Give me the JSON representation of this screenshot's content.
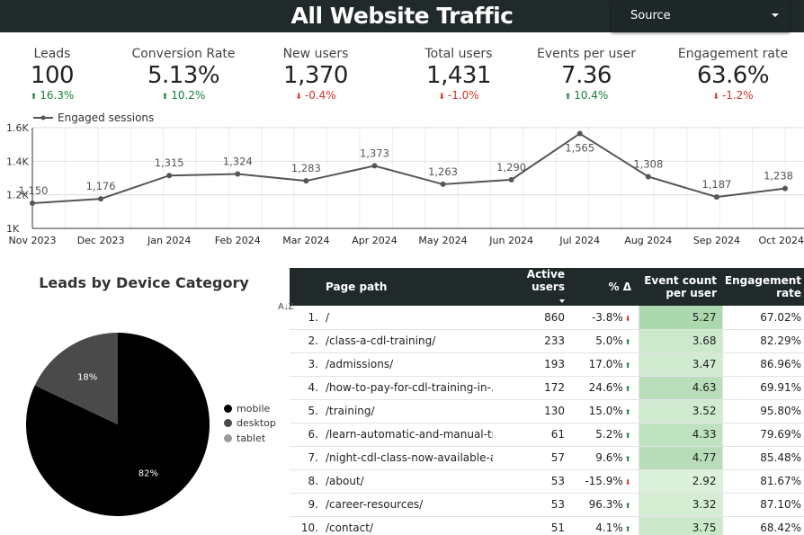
{
  "header": {
    "title": "All Website Traffic",
    "source_dropdown": "Source"
  },
  "kpis": [
    {
      "label": "Leads",
      "value": "100",
      "delta": "16.3%",
      "direction": "up"
    },
    {
      "label": "Conversion Rate",
      "value": "5.13%",
      "delta": "10.2%",
      "direction": "up"
    },
    {
      "label": "New users",
      "value": "1,370",
      "delta": "-0.4%",
      "direction": "down"
    },
    {
      "label": "Total users",
      "value": "1,431",
      "delta": "-1.0%",
      "direction": "down"
    },
    {
      "label": "Events per user",
      "value": "7.36",
      "delta": "10.4%",
      "direction": "up"
    },
    {
      "label": "Engagement rate",
      "value": "63.6%",
      "delta": "-1.2%",
      "direction": "down"
    }
  ],
  "colors": {
    "header_bg": "#202a2b",
    "up": "#188038",
    "down": "#d93025",
    "line": "#555555",
    "mobile": "#000000",
    "desktop": "#4a4a4a",
    "tablet": "#999999"
  },
  "chart_data": [
    {
      "type": "line",
      "series": [
        {
          "name": "Engaged sessions",
          "values": [
            1150,
            1176,
            1315,
            1324,
            1283,
            1373,
            1263,
            1290,
            1565,
            1308,
            1187,
            1238
          ]
        }
      ],
      "categories": [
        "Nov 2023",
        "Dec 2023",
        "Jan 2024",
        "Feb 2024",
        "Mar 2024",
        "Apr 2024",
        "May 2024",
        "Jun 2024",
        "Jul 2024",
        "Aug 2024",
        "Sep 2024",
        "Oct 2024"
      ],
      "point_labels": [
        "1,150",
        "1,176",
        "1,315",
        "1,324",
        "1,283",
        "1,373",
        "1,263",
        "1,290",
        "1,565",
        "1,308",
        "1,187",
        "1,238"
      ],
      "y_ticks": [
        "1K",
        "1.2K",
        "1.4K",
        "1.6K"
      ],
      "ylim": [
        1000,
        1600
      ],
      "grid": true,
      "legend": "top-left"
    },
    {
      "type": "pie",
      "title": "Leads by Device Category",
      "slices": [
        {
          "name": "mobile",
          "value": 82,
          "label": "82%"
        },
        {
          "name": "desktop",
          "value": 18,
          "label": "18%"
        },
        {
          "name": "tablet",
          "value": 0,
          "label": ""
        }
      ],
      "legend": "right"
    },
    {
      "type": "table",
      "az_label": "A↓Z",
      "columns": [
        "",
        "Page path",
        "Active users",
        "% Δ",
        "Event count per user",
        "Engagement rate"
      ],
      "rows": [
        {
          "idx": "1.",
          "path": "/",
          "users": "860",
          "delta": "-3.8%",
          "dir": "down",
          "ecpu": "5.27",
          "ecpu_val": 5.27,
          "rate": "67.02%"
        },
        {
          "idx": "2.",
          "path": "/class-a-cdl-training/",
          "users": "233",
          "delta": "5.0%",
          "dir": "up",
          "ecpu": "3.68",
          "ecpu_val": 3.68,
          "rate": "82.29%"
        },
        {
          "idx": "3.",
          "path": "/admissions/",
          "users": "193",
          "delta": "17.0%",
          "dir": "up",
          "ecpu": "3.47",
          "ecpu_val": 3.47,
          "rate": "86.96%"
        },
        {
          "idx": "4.",
          "path": "/how-to-pay-for-cdl-training-in-...",
          "users": "172",
          "delta": "24.6%",
          "dir": "up",
          "ecpu": "4.63",
          "ecpu_val": 4.63,
          "rate": "69.91%"
        },
        {
          "idx": "5.",
          "path": "/training/",
          "users": "130",
          "delta": "15.0%",
          "dir": "up",
          "ecpu": "3.52",
          "ecpu_val": 3.52,
          "rate": "95.80%"
        },
        {
          "idx": "6.",
          "path": "/learn-automatic-and-manual-tr...",
          "users": "61",
          "delta": "5.2%",
          "dir": "up",
          "ecpu": "4.33",
          "ecpu_val": 4.33,
          "rate": "79.69%"
        },
        {
          "idx": "7.",
          "path": "/night-cdl-class-now-available-at...",
          "users": "57",
          "delta": "9.6%",
          "dir": "up",
          "ecpu": "4.77",
          "ecpu_val": 4.77,
          "rate": "85.48%"
        },
        {
          "idx": "8.",
          "path": "/about/",
          "users": "53",
          "delta": "-15.9%",
          "dir": "down",
          "ecpu": "2.92",
          "ecpu_val": 2.92,
          "rate": "81.67%"
        },
        {
          "idx": "9.",
          "path": "/career-resources/",
          "users": "53",
          "delta": "96.3%",
          "dir": "up",
          "ecpu": "3.32",
          "ecpu_val": 3.32,
          "rate": "87.10%"
        },
        {
          "idx": "10.",
          "path": "/contact/",
          "users": "51",
          "delta": "4.1%",
          "dir": "up",
          "ecpu": "3.75",
          "ecpu_val": 3.75,
          "rate": "68.42%"
        }
      ]
    }
  ]
}
